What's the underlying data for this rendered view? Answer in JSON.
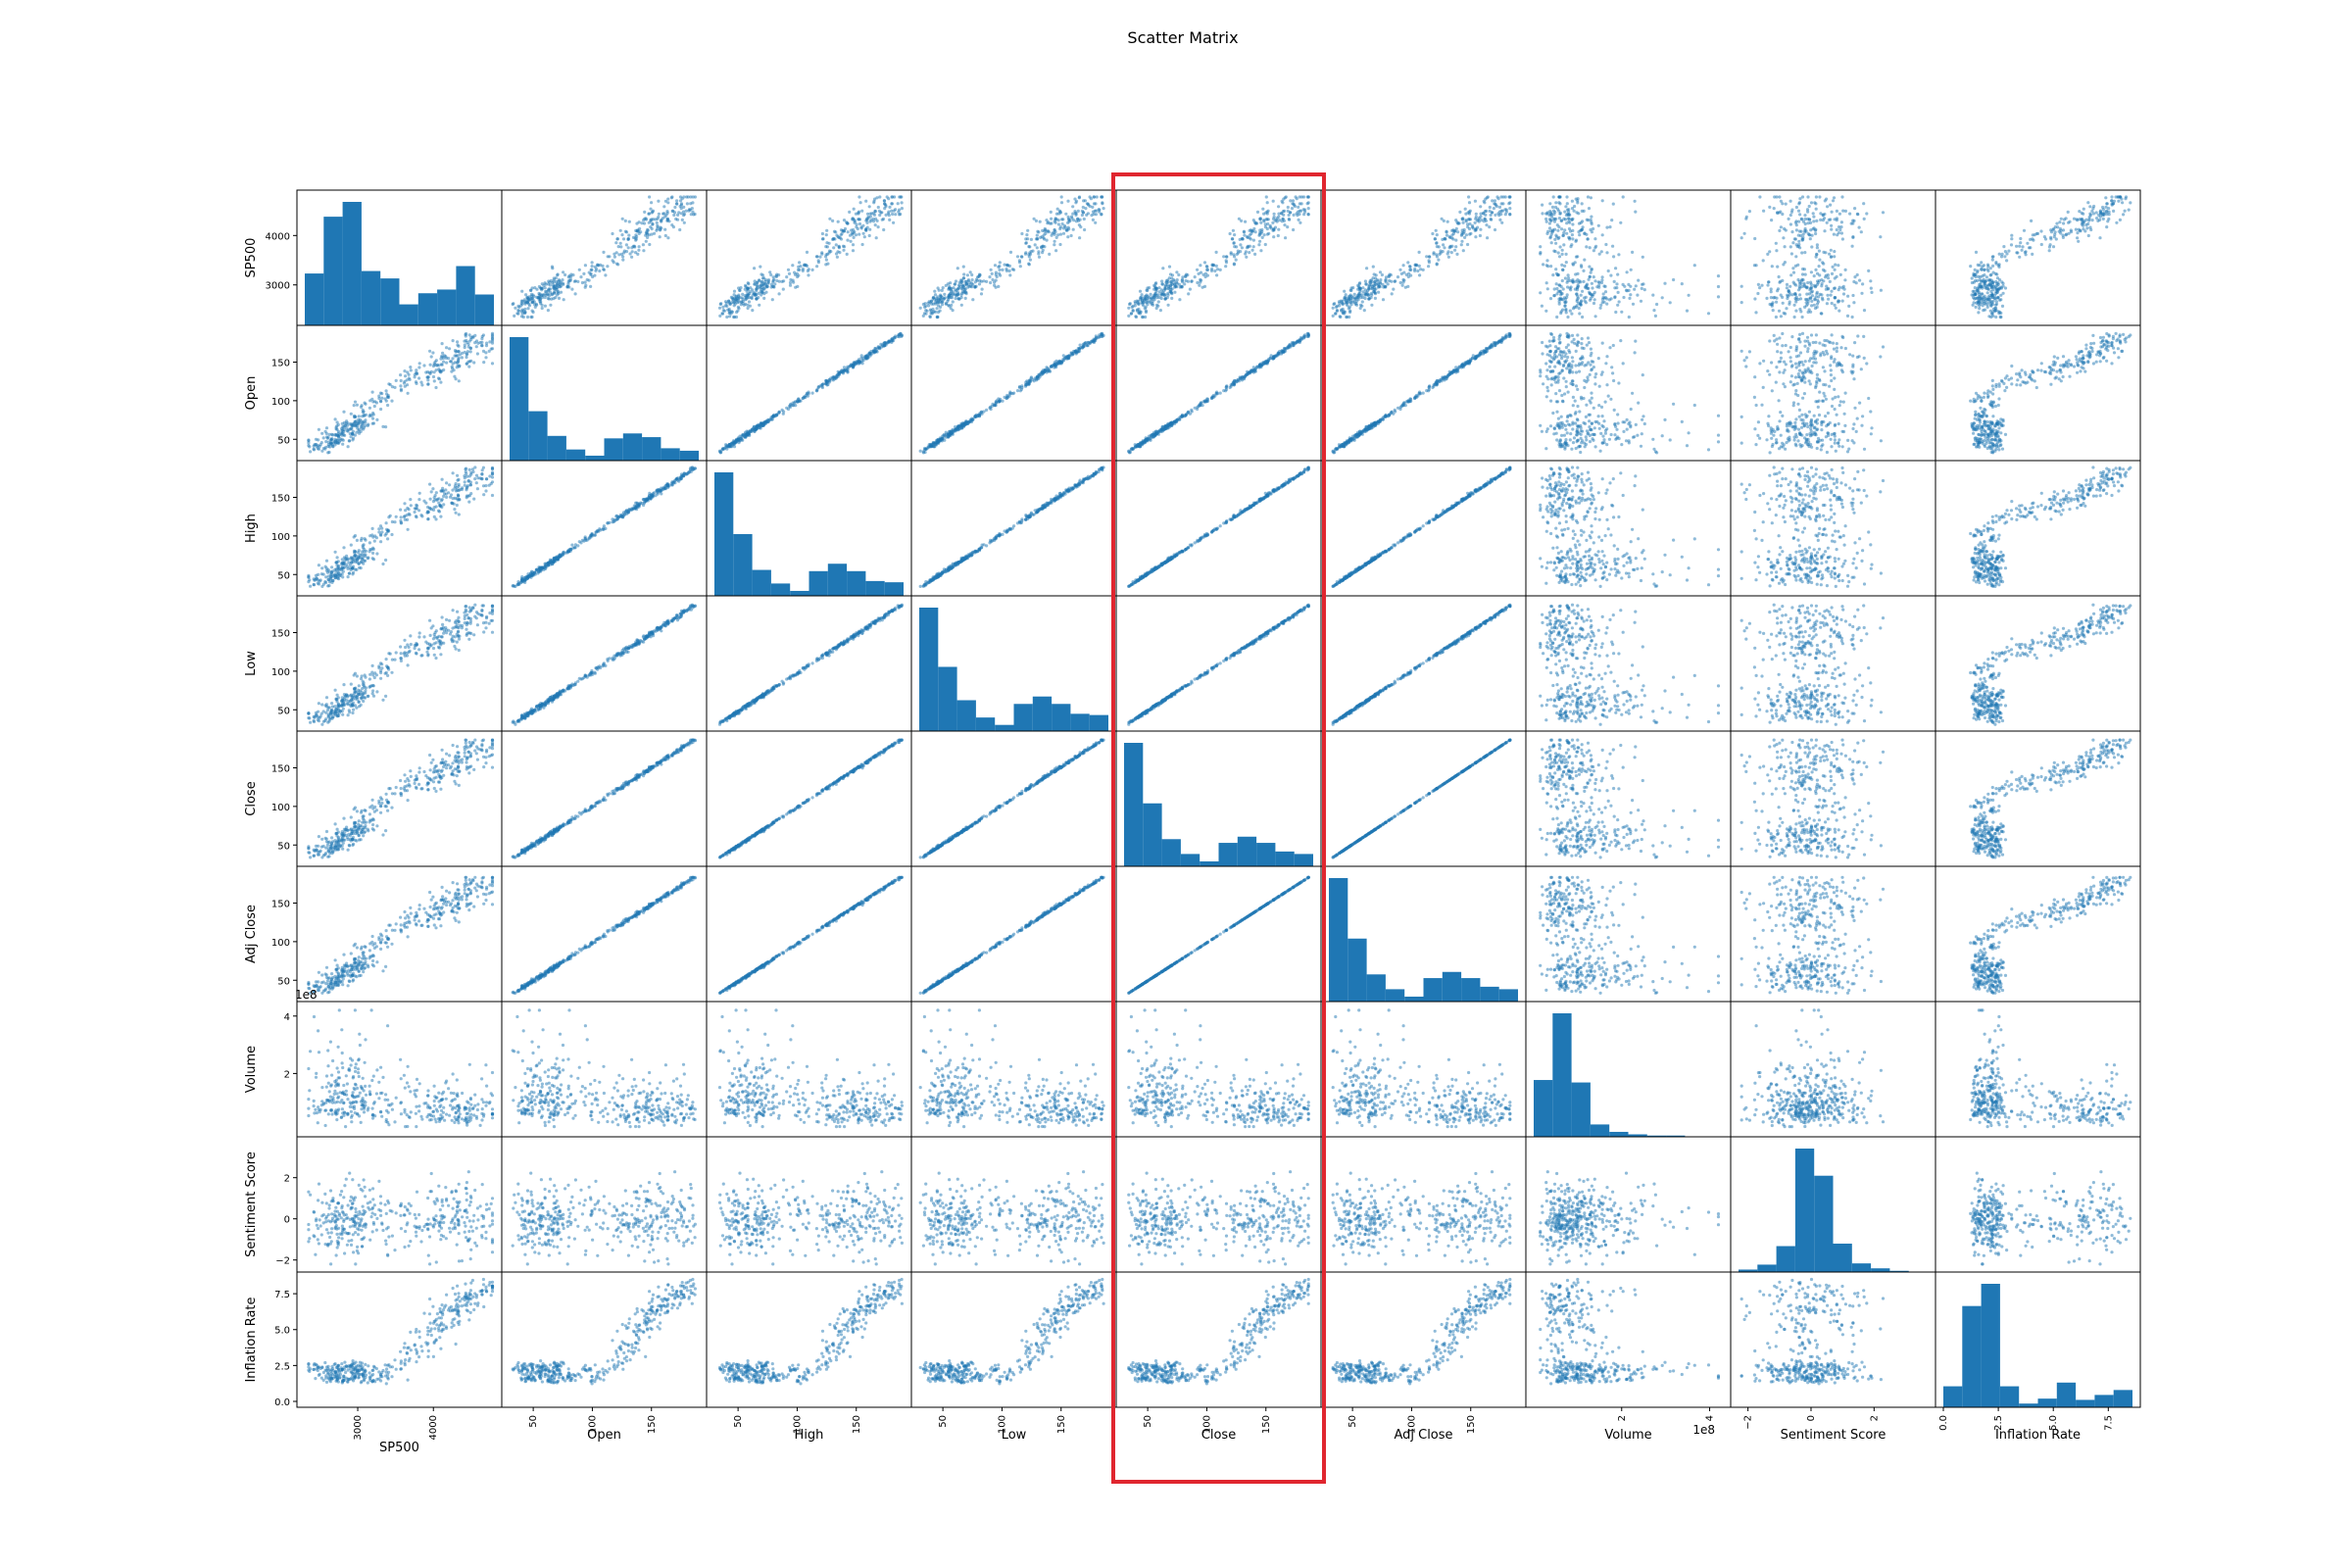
{
  "chart_data": {
    "type": "scatter",
    "title": "Scatter Matrix",
    "diagonal": "hist",
    "color": "#1f77b4",
    "highlight_color": "#e0262f",
    "highlight_column": "Close",
    "variables": [
      {
        "name": "SP500",
        "range": [
          2300,
          4800
        ],
        "ticks": [
          3000,
          4000
        ],
        "tick_labels": [
          "3000",
          "4000"
        ],
        "offset_text": ""
      },
      {
        "name": "Open",
        "range": [
          30,
          190
        ],
        "ticks": [
          50,
          100,
          150
        ],
        "tick_labels": [
          "50",
          "100",
          "150"
        ],
        "offset_text": ""
      },
      {
        "name": "High",
        "range": [
          30,
          190
        ],
        "ticks": [
          50,
          100,
          150
        ],
        "tick_labels": [
          "50",
          "100",
          "150"
        ],
        "offset_text": ""
      },
      {
        "name": "Low",
        "range": [
          30,
          190
        ],
        "ticks": [
          50,
          100,
          150
        ],
        "tick_labels": [
          "50",
          "100",
          "150"
        ],
        "offset_text": ""
      },
      {
        "name": "Close",
        "range": [
          30,
          190
        ],
        "ticks": [
          50,
          100,
          150
        ],
        "tick_labels": [
          "50",
          "100",
          "150"
        ],
        "offset_text": ""
      },
      {
        "name": "Adj Close",
        "range": [
          30,
          190
        ],
        "ticks": [
          50,
          100,
          150
        ],
        "tick_labels": [
          "50",
          "100",
          "150"
        ],
        "offset_text": ""
      },
      {
        "name": "Volume",
        "range": [
          0,
          430000000
        ],
        "ticks": [
          200000000,
          400000000
        ],
        "tick_labels": [
          "2",
          "4"
        ],
        "offset_text": "1e8"
      },
      {
        "name": "Sentiment Score",
        "range": [
          -2.3,
          3.7
        ],
        "ticks": [
          -2,
          0,
          2
        ],
        "tick_labels": [
          "−2",
          "0",
          "2"
        ],
        "offset_text": ""
      },
      {
        "name": "Inflation Rate",
        "range": [
          0,
          8.6
        ],
        "ticks": [
          0,
          2.5,
          5,
          7.5
        ],
        "tick_labels": [
          "0.0",
          "2.5",
          "5.0",
          "7.5"
        ],
        "offset_text": ""
      }
    ],
    "histograms": [
      [
        0.42,
        0.88,
        1.0,
        0.44,
        0.38,
        0.17,
        0.26,
        0.29,
        0.48,
        0.25
      ],
      [
        1.0,
        0.4,
        0.2,
        0.09,
        0.04,
        0.18,
        0.22,
        0.19,
        0.1,
        0.08
      ],
      [
        1.0,
        0.5,
        0.21,
        0.1,
        0.04,
        0.2,
        0.26,
        0.2,
        0.12,
        0.11
      ],
      [
        1.0,
        0.52,
        0.25,
        0.11,
        0.05,
        0.22,
        0.28,
        0.22,
        0.14,
        0.13
      ],
      [
        1.0,
        0.51,
        0.22,
        0.1,
        0.04,
        0.19,
        0.24,
        0.19,
        0.12,
        0.1
      ],
      [
        1.0,
        0.51,
        0.22,
        0.1,
        0.04,
        0.19,
        0.24,
        0.19,
        0.12,
        0.1
      ],
      [
        0.46,
        1.0,
        0.44,
        0.1,
        0.04,
        0.02,
        0.01,
        0.01,
        0.0,
        0.0
      ],
      [
        0.02,
        0.06,
        0.21,
        1.0,
        0.78,
        0.23,
        0.07,
        0.03,
        0.01,
        0.0
      ],
      [
        0.17,
        0.82,
        1.0,
        0.17,
        0.03,
        0.07,
        0.2,
        0.06,
        0.1,
        0.14
      ]
    ]
  }
}
